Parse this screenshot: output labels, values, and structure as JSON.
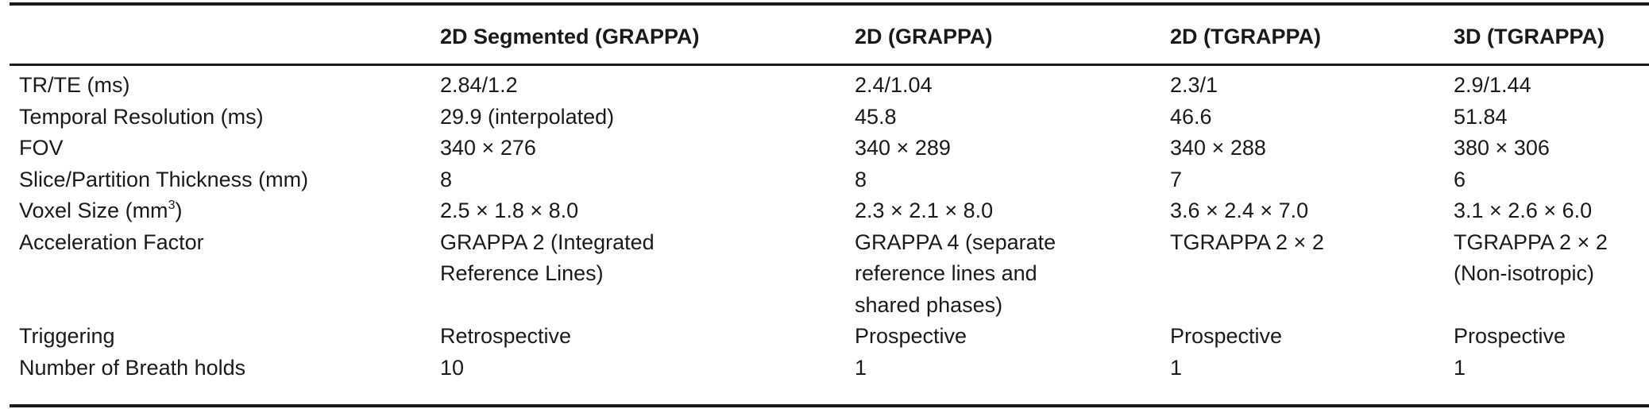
{
  "table": {
    "headers": [
      "",
      "2D Segmented (GRAPPA)",
      "2D (GRAPPA)",
      "2D (TGRAPPA)",
      "3D (TGRAPPA)"
    ],
    "rows": [
      {
        "label": "TR/TE (ms)",
        "values": [
          [
            "2.84/1.2"
          ],
          [
            "2.4/1.04"
          ],
          [
            "2.3/1"
          ],
          [
            "2.9/1.44"
          ]
        ]
      },
      {
        "label": "Temporal Resolution (ms)",
        "values": [
          [
            "29.9 (interpolated)"
          ],
          [
            "45.8"
          ],
          [
            "46.6"
          ],
          [
            "51.84"
          ]
        ]
      },
      {
        "label": "FOV",
        "values": [
          [
            "340 × 276"
          ],
          [
            "340 × 289"
          ],
          [
            "340 × 288"
          ],
          [
            "380 × 306"
          ]
        ]
      },
      {
        "label": "Slice/Partition Thickness (mm)",
        "values": [
          [
            "8"
          ],
          [
            "8"
          ],
          [
            "7"
          ],
          [
            "6"
          ]
        ]
      },
      {
        "label": "Voxel Size (mm",
        "label_sup": "3",
        "label_after": ")",
        "values": [
          [
            "2.5 × 1.8 × 8.0"
          ],
          [
            "2.3 × 2.1 × 8.0"
          ],
          [
            "3.6 × 2.4 × 7.0"
          ],
          [
            "3.1 × 2.6 × 6.0"
          ]
        ]
      },
      {
        "label": "Acceleration Factor",
        "values": [
          [
            "GRAPPA 2 (Integrated",
            "Reference Lines)"
          ],
          [
            "GRAPPA 4 (separate",
            "reference lines and",
            "shared phases)"
          ],
          [
            "TGRAPPA 2 × 2"
          ],
          [
            "TGRAPPA 2 × 2",
            "(Non-isotropic)"
          ]
        ]
      },
      {
        "label": "Triggering",
        "values": [
          [
            "Retrospective"
          ],
          [
            "Prospective"
          ],
          [
            "Prospective"
          ],
          [
            "Prospective"
          ]
        ]
      },
      {
        "label": "Number of Breath holds",
        "values": [
          [
            "10"
          ],
          [
            "1"
          ],
          [
            "1"
          ],
          [
            "1"
          ]
        ]
      }
    ]
  }
}
